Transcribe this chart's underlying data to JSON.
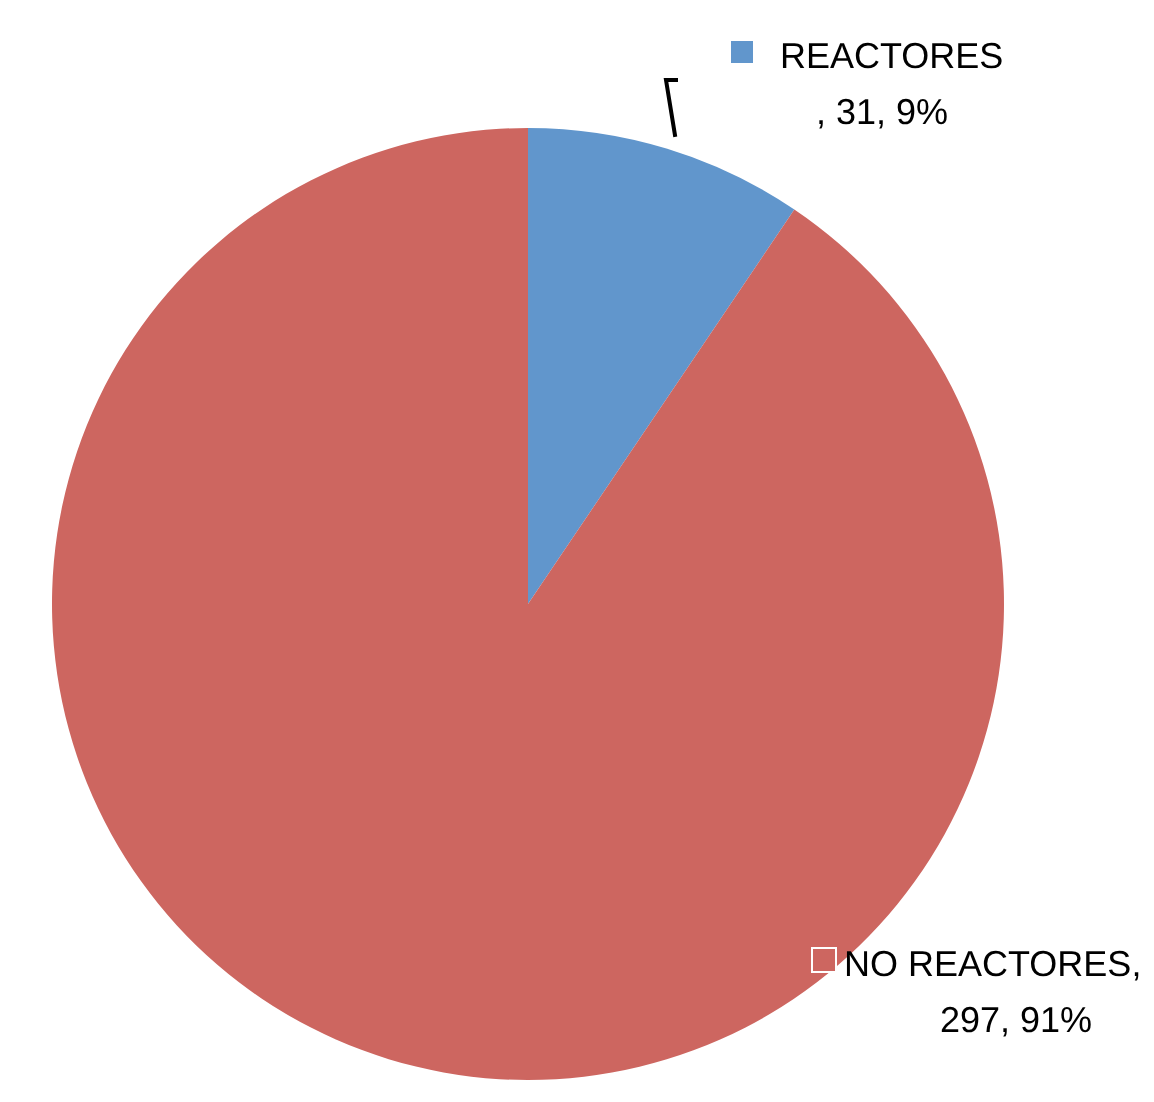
{
  "chart_data": {
    "type": "pie",
    "categories": [
      "REACTORES",
      "NO REACTORES"
    ],
    "values": [
      31,
      297
    ],
    "colors": [
      "#6196cc",
      "#cd6660"
    ],
    "value_labels": [
      ", 31, 9%",
      ", 297, 91%"
    ],
    "legend": "right"
  }
}
